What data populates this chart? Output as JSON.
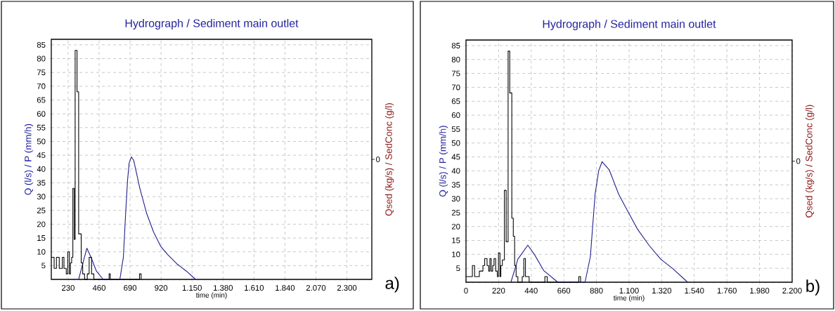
{
  "chart_data": [
    {
      "type": "line",
      "title": "Hydrograph / Sediment main outlet",
      "xlabel": "time (min)",
      "ylabel": "Q (l/s) / P (mm/h)",
      "xlim": [
        105,
        2485
      ],
      "xticks": [
        230,
        460,
        690,
        920,
        {
          "value": 1150,
          "label": "1.150"
        },
        {
          "value": 1380,
          "label": "1.380"
        },
        {
          "value": 1610,
          "label": "1.610"
        },
        {
          "value": 1840,
          "label": "1.840"
        },
        {
          "value": 2070,
          "label": "2.070"
        },
        {
          "value": 2300,
          "label": "2.300"
        }
      ],
      "ylim": [
        0,
        87
      ],
      "yticks": [
        5,
        10,
        15,
        20,
        25,
        30,
        35,
        40,
        45,
        50,
        55,
        60,
        65,
        70,
        75,
        80,
        85
      ],
      "grid": true,
      "annotations": [
        "Qsed (kg/s) / SedConc (g/l)",
        "0",
        "a)"
      ],
      "series": [
        {
          "type": "line",
          "color": "#1a1a8c",
          "x": [
            308,
            340,
            369,
            400,
            440,
            490,
            614,
            640,
            657,
            671,
            683,
            700,
            717,
            740,
            761,
            813,
            865,
            917,
            969,
            1038,
            1108,
            1177
          ],
          "values": [
            0,
            6,
            11.3,
            8,
            3,
            0,
            0,
            8,
            23.9,
            35.8,
            42.2,
            44.4,
            43.1,
            38,
            33.3,
            23.9,
            17.1,
            12,
            9,
            5.6,
            3,
            0
          ]
        },
        {
          "type": "step",
          "color": "#000000",
          "x": [
            105,
            126,
            143,
            164,
            187,
            199,
            216,
            227,
            239,
            247,
            256,
            265,
            275,
            282,
            296,
            308,
            327,
            338,
            352,
            372,
            386,
            404,
            421,
            534,
            543,
            760,
            772
          ],
          "values": [
            8,
            4,
            8,
            4,
            8,
            4,
            2,
            10,
            2,
            6,
            8,
            33,
            14.5,
            83,
            68,
            16.5,
            6,
            2,
            0,
            2,
            8,
            2,
            0,
            2,
            0,
            2,
            0
          ]
        }
      ]
    },
    {
      "type": "line",
      "title": "Hydrograph / Sediment main outlet",
      "xlabel": "time (min)",
      "ylabel": "Q (l/s) / P (mm/h)",
      "xlim": [
        0,
        2200
      ],
      "xticks": [
        0,
        220,
        440,
        660,
        880,
        {
          "value": 1100,
          "label": "1.100"
        },
        {
          "value": 1320,
          "label": "1.320"
        },
        {
          "value": 1540,
          "label": "1.540"
        },
        {
          "value": 1760,
          "label": "1.760"
        },
        {
          "value": 1980,
          "label": "1.980"
        },
        {
          "value": 2200,
          "label": "2.200"
        }
      ],
      "ylim": [
        0,
        87
      ],
      "yticks": [
        5,
        10,
        15,
        20,
        25,
        30,
        35,
        40,
        45,
        50,
        55,
        60,
        65,
        70,
        75,
        80,
        85
      ],
      "grid": true,
      "annotations": [
        "Qsed (kg/s) / SedConc (g/l)",
        "0",
        "b)"
      ],
      "series": [
        {
          "type": "line",
          "color": "#1a1a8c",
          "x": [
            303,
            350,
            417,
            461,
            524,
            619,
            803,
            839,
            871,
            895,
            918,
            966,
            1029,
            1076,
            1155,
            1234,
            1313,
            1392,
            1495
          ],
          "values": [
            0,
            8.3,
            13.3,
            10,
            4.2,
            0,
            0,
            9.2,
            31.7,
            40,
            43.3,
            40.4,
            31.7,
            27,
            19.2,
            13.3,
            8.3,
            5,
            0
          ]
        },
        {
          "type": "step",
          "color": "#000000",
          "x": [
            0,
            43,
            58,
            90,
            114,
            126,
            142,
            153,
            161,
            170,
            180,
            189,
            200,
            211,
            219,
            229,
            235,
            245,
            259,
            271,
            284,
            295,
            309,
            319,
            328,
            338,
            350,
            379,
            390,
            401,
            426,
            532,
            548,
            761,
            773
          ],
          "values": [
            2,
            6,
            2,
            4,
            6,
            8.5,
            6,
            4,
            8.5,
            4,
            6,
            8.5,
            4,
            2,
            10.5,
            2,
            6,
            8,
            33,
            14.5,
            83,
            68,
            23,
            16.5,
            6,
            2,
            0,
            2,
            8.5,
            2,
            0,
            2,
            0,
            2,
            0
          ]
        }
      ]
    }
  ]
}
